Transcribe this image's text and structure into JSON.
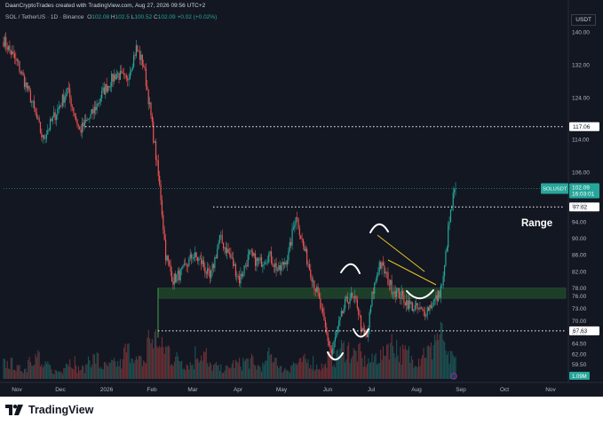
{
  "header": {
    "attribution": "DaanCryptoTrades created with TradingView.com, Aug 27, 2026 09:56 UTC+2"
  },
  "legend": {
    "title": "SOL / TetherUS · 1D · Binance",
    "o_label": "O",
    "o": "102.08",
    "h_label": "H",
    "h": "102.5",
    "l_label": "L",
    "l": "100.52",
    "c_label": "C",
    "c": "102.09",
    "change": "+0.02 (+0.02%)"
  },
  "currency": "USDT",
  "brand": "TradingView",
  "colors": {
    "background": "#131722",
    "up": "#26a69a",
    "down": "#ef5350",
    "zone": "#2e7d32",
    "flag": "#e6c229"
  },
  "chart_data": {
    "type": "candlestick",
    "symbol": "SOL / TetherUS",
    "interval": "1D",
    "exchange": "Binance",
    "ylim": [
      56,
      143
    ],
    "y_ticks": [
      59.5,
      62.0,
      64.5,
      67.0,
      70.0,
      73.0,
      76.0,
      78.0,
      82.0,
      86.0,
      90.0,
      94.0,
      98.0,
      106.0,
      114.0,
      124.0,
      132.0,
      140.0
    ],
    "y_tick_labels": [
      "59.50",
      "62.00",
      "64.50",
      "67.00",
      "70.00",
      "73.00",
      "76.00",
      "78.00",
      "82.00",
      "86.00",
      "90.00",
      "94.00",
      "98.00",
      "106.00",
      "114.00",
      "124.00",
      "132.00",
      "140.00"
    ],
    "x_ticks": [
      "Nov",
      "Dec",
      "2026",
      "Feb",
      "Mar",
      "Apr",
      "May",
      "Jun",
      "Jul",
      "Aug",
      "Sep",
      "Oct",
      "Nov"
    ],
    "x_tick_pos": [
      19,
      68,
      120,
      171,
      217,
      268,
      317,
      369,
      418,
      469,
      519,
      568,
      620
    ],
    "levels": [
      {
        "value": 117.06,
        "label": "117.06"
      },
      {
        "value": 97.62,
        "label": "97.62"
      },
      {
        "value": 67.63,
        "label": "67.63"
      }
    ],
    "price_label": {
      "symbol": "SOLUSDT",
      "price": "102.09",
      "countdown": "16:03:01",
      "value": 102.09
    },
    "zone": {
      "low": 75.5,
      "high": 78.0
    },
    "annotation": "Range",
    "key_points": [
      {
        "t": 0,
        "p": 138
      },
      {
        "t": 12,
        "p": 132
      },
      {
        "t": 22,
        "p": 124
      },
      {
        "t": 32,
        "p": 114
      },
      {
        "t": 42,
        "p": 120
      },
      {
        "t": 52,
        "p": 126
      },
      {
        "t": 62,
        "p": 116
      },
      {
        "t": 72,
        "p": 120
      },
      {
        "t": 82,
        "p": 126
      },
      {
        "t": 92,
        "p": 130
      },
      {
        "t": 100,
        "p": 128
      },
      {
        "t": 108,
        "p": 136
      },
      {
        "t": 114,
        "p": 132
      },
      {
        "t": 118,
        "p": 124
      },
      {
        "t": 124,
        "p": 110
      },
      {
        "t": 128,
        "p": 100
      },
      {
        "t": 132,
        "p": 86
      },
      {
        "t": 138,
        "p": 80
      },
      {
        "t": 146,
        "p": 82
      },
      {
        "t": 154,
        "p": 86
      },
      {
        "t": 162,
        "p": 84
      },
      {
        "t": 168,
        "p": 80
      },
      {
        "t": 176,
        "p": 90
      },
      {
        "t": 184,
        "p": 86
      },
      {
        "t": 192,
        "p": 80
      },
      {
        "t": 200,
        "p": 86
      },
      {
        "t": 208,
        "p": 84
      },
      {
        "t": 216,
        "p": 86
      },
      {
        "t": 224,
        "p": 82
      },
      {
        "t": 232,
        "p": 86
      },
      {
        "t": 238,
        "p": 96
      },
      {
        "t": 244,
        "p": 88
      },
      {
        "t": 250,
        "p": 82
      },
      {
        "t": 256,
        "p": 76
      },
      {
        "t": 262,
        "p": 68
      },
      {
        "t": 267,
        "p": 62
      },
      {
        "t": 272,
        "p": 68
      },
      {
        "t": 278,
        "p": 74
      },
      {
        "t": 282,
        "p": 76
      },
      {
        "t": 288,
        "p": 74
      },
      {
        "t": 292,
        "p": 67
      },
      {
        "t": 296,
        "p": 66
      },
      {
        "t": 300,
        "p": 76
      },
      {
        "t": 306,
        "p": 84
      },
      {
        "t": 310,
        "p": 82
      },
      {
        "t": 316,
        "p": 78
      },
      {
        "t": 324,
        "p": 76
      },
      {
        "t": 330,
        "p": 74
      },
      {
        "t": 336,
        "p": 73
      },
      {
        "t": 342,
        "p": 72
      },
      {
        "t": 348,
        "p": 74
      },
      {
        "t": 354,
        "p": 76
      },
      {
        "t": 358,
        "p": 80
      },
      {
        "t": 362,
        "p": 92
      },
      {
        "t": 366,
        "p": 100
      },
      {
        "t": 368,
        "p": 102
      }
    ],
    "volume_profile": [
      0.3,
      0.2,
      0.45,
      0.25,
      0.15,
      0.35,
      0.2,
      0.4,
      0.25,
      0.3,
      0.55,
      0.35,
      0.8,
      0.6,
      0.4,
      0.3,
      0.5,
      0.25,
      0.2,
      0.3,
      0.35,
      0.25,
      0.45,
      0.2,
      0.3,
      0.35,
      0.25,
      0.4,
      0.6,
      0.5,
      0.35,
      0.45,
      0.7,
      0.5,
      0.4,
      0.55,
      0.85,
      0.4
    ]
  }
}
